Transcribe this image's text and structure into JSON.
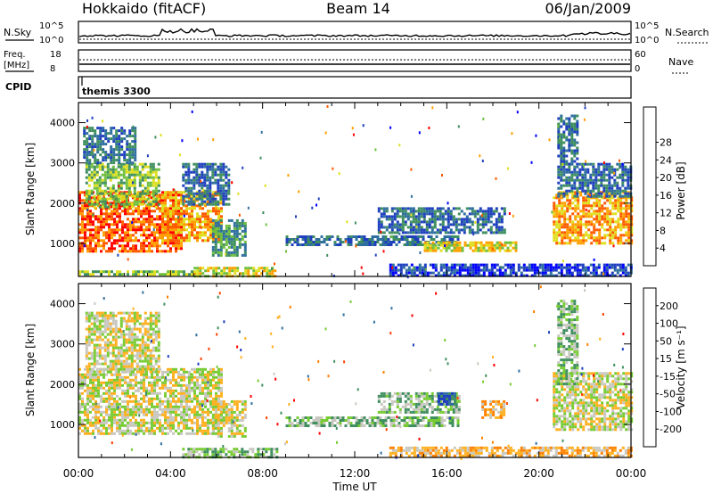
{
  "header": {
    "station": "Hokkaido (fitACF)",
    "beam": "Beam 14",
    "date": "06/Jan/2009"
  },
  "noise_panel": {
    "left_label": "N.Sky",
    "right_label": "N.Search",
    "y_ticks": [
      "10^5",
      "10^0"
    ]
  },
  "freq_panel": {
    "left_label_1": "Freq.",
    "left_label_2": "[MHz]",
    "right_label": "Nave",
    "left_ticks": [
      "18",
      "8"
    ],
    "right_ticks": [
      "60",
      "0"
    ]
  },
  "cpid_panel": {
    "label": "CPID",
    "mode": "themis 3300"
  },
  "chart_data": [
    {
      "type": "heatmap",
      "quantity": "power",
      "ylabel": "Slant Range [km]",
      "ylim": [
        180,
        4500
      ],
      "y_ticks": [
        "1000",
        "2000",
        "3000",
        "4000"
      ],
      "xlim": [
        0,
        24
      ],
      "colorbar": {
        "label": "Power [dB]",
        "ticks": [
          "4",
          "8",
          "12",
          "16",
          "20",
          "24",
          "28"
        ],
        "colors": [
          "#0000ff",
          "#1f3fbf",
          "#2f6f9f",
          "#3f8f5f",
          "#6fbf3f",
          "#dfdf20",
          "#ffa000",
          "#ff5a00",
          "#ff0000"
        ]
      },
      "regions": [
        {
          "t": [
            0.0,
            4.5
          ],
          "r": [
            800,
            2300
          ],
          "level": 7
        },
        {
          "t": [
            0.3,
            3.5
          ],
          "r": [
            1900,
            3000
          ],
          "level": 4
        },
        {
          "t": [
            0.2,
            2.5
          ],
          "r": [
            3000,
            3900
          ],
          "level": 2
        },
        {
          "t": [
            3.6,
            6.2
          ],
          "r": [
            1100,
            2300
          ],
          "level": 6
        },
        {
          "t": [
            4.5,
            6.5
          ],
          "r": [
            2000,
            3000
          ],
          "level": 2
        },
        {
          "t": [
            5.8,
            7.3
          ],
          "r": [
            700,
            1600
          ],
          "level": 3
        },
        {
          "t": [
            5.0,
            8.6
          ],
          "r": [
            200,
            420
          ],
          "level": 5
        },
        {
          "t": [
            0.0,
            5.0
          ],
          "r": [
            200,
            330
          ],
          "level": 4
        },
        {
          "t": [
            9.0,
            16.5
          ],
          "r": [
            1000,
            1200
          ],
          "level": 2
        },
        {
          "t": [
            13.0,
            18.5
          ],
          "r": [
            1300,
            1900
          ],
          "level": 2
        },
        {
          "t": [
            15.0,
            19.0
          ],
          "r": [
            850,
            1050
          ],
          "level": 5
        },
        {
          "t": [
            13.5,
            24.0
          ],
          "r": [
            200,
            500
          ],
          "level": 1
        },
        {
          "t": [
            20.6,
            24.0
          ],
          "r": [
            1000,
            2300
          ],
          "level": 6
        },
        {
          "t": [
            20.8,
            24.0
          ],
          "r": [
            2200,
            3000
          ],
          "level": 2
        },
        {
          "t": [
            20.8,
            21.7
          ],
          "r": [
            3000,
            4200
          ],
          "level": 2
        }
      ]
    },
    {
      "type": "heatmap",
      "quantity": "velocity",
      "ylabel": "Slant Range [km]",
      "ylim": [
        180,
        4500
      ],
      "y_ticks": [
        "1000",
        "2000",
        "3000",
        "4000"
      ],
      "xlim": [
        0,
        24
      ],
      "x_ticks": [
        "00:00",
        "04:00",
        "08:00",
        "12:00",
        "16:00",
        "20:00",
        "00:00"
      ],
      "xlabel": "Time UT",
      "colorbar": {
        "label": "Velocity [m s⁻¹]",
        "ticks": [
          "200",
          "100",
          "50",
          "15",
          "-15",
          "-50",
          "-100",
          "-200"
        ],
        "colors": [
          "#1f3fbf",
          "#2f6f9f",
          "#3f8f5f",
          "#77cc33",
          "#c8c8c0",
          "#ffb020",
          "#ff8000",
          "#ff4000",
          "#ff0000"
        ]
      },
      "regions": [
        {
          "t": [
            0.0,
            6.2
          ],
          "r": [
            800,
            2400
          ],
          "level": 4
        },
        {
          "t": [
            0.3,
            3.5
          ],
          "r": [
            2300,
            3800
          ],
          "level": 4
        },
        {
          "t": [
            5.8,
            7.3
          ],
          "r": [
            700,
            1600
          ],
          "level": 4
        },
        {
          "t": [
            4.5,
            8.6
          ],
          "r": [
            200,
            420
          ],
          "level": 3
        },
        {
          "t": [
            9.0,
            16.5
          ],
          "r": [
            1000,
            1200
          ],
          "level": 3
        },
        {
          "t": [
            13.0,
            16.5
          ],
          "r": [
            1300,
            1800
          ],
          "level": 3
        },
        {
          "t": [
            15.6,
            16.3
          ],
          "r": [
            1500,
            1800
          ],
          "level": 1
        },
        {
          "t": [
            17.5,
            18.5
          ],
          "r": [
            1200,
            1600
          ],
          "level": 5
        },
        {
          "t": [
            13.5,
            24.0
          ],
          "r": [
            200,
            450
          ],
          "level": 5
        },
        {
          "t": [
            20.6,
            24.0
          ],
          "r": [
            900,
            2300
          ],
          "level": 4
        },
        {
          "t": [
            20.8,
            21.7
          ],
          "r": [
            2000,
            4100
          ],
          "level": 3
        }
      ]
    }
  ]
}
